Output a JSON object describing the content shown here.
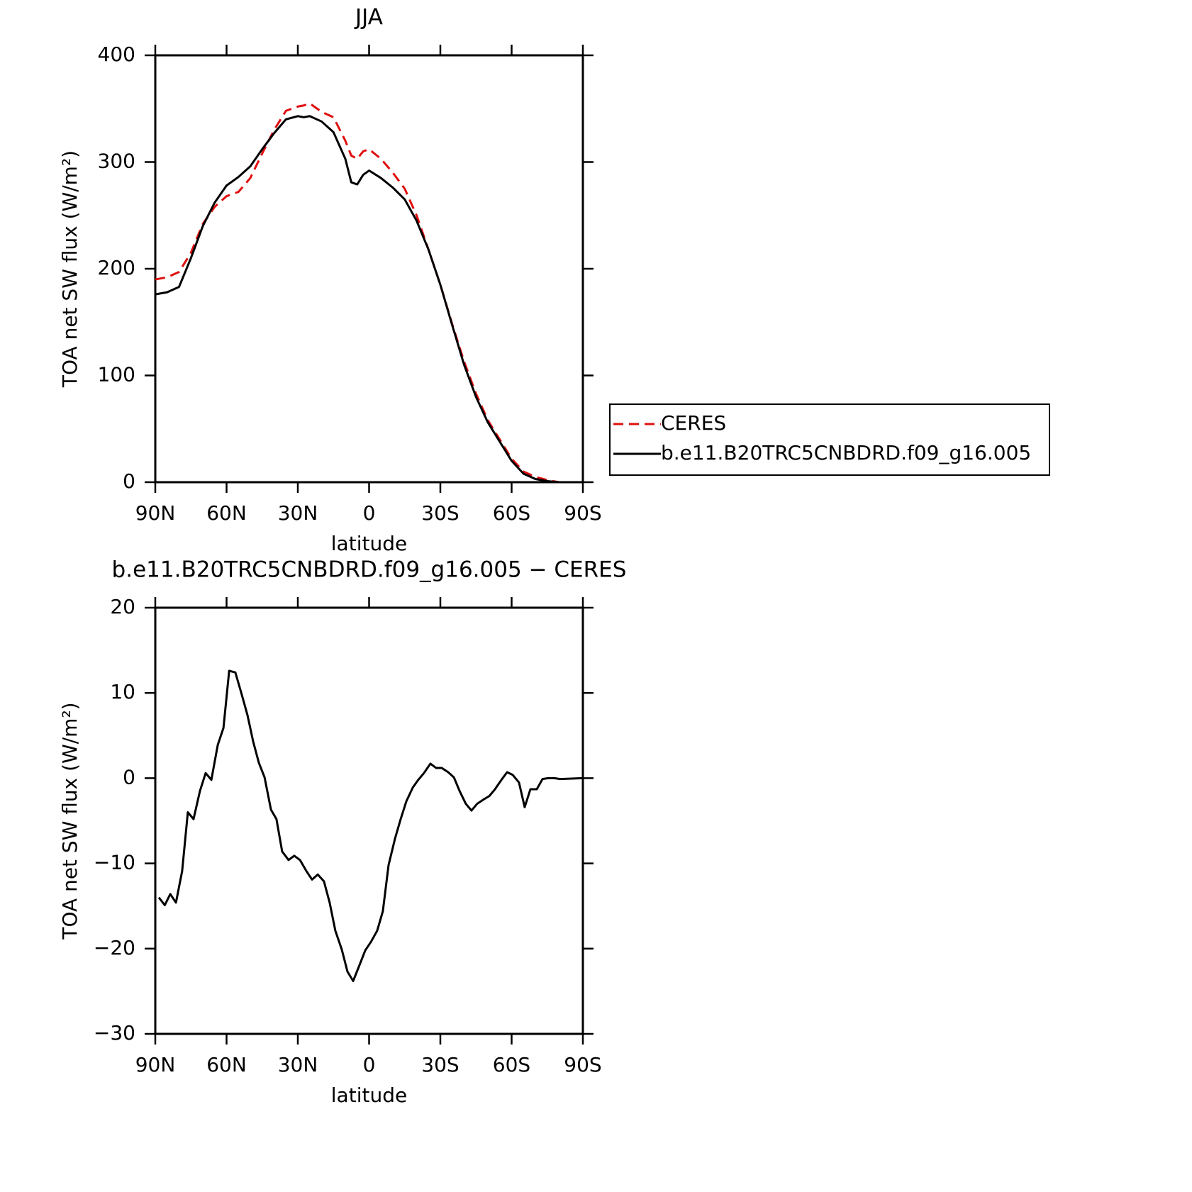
{
  "chart_data": [
    {
      "type": "line",
      "title": "JJA",
      "xlabel": "latitude",
      "ylabel": "TOA net SW flux (W/m²)",
      "x": [
        90,
        85,
        80,
        75,
        70,
        65,
        60,
        55,
        50,
        45,
        40,
        35,
        30,
        27.5,
        25,
        20,
        15,
        10,
        7.5,
        5,
        2.5,
        0,
        -5,
        -10,
        -15,
        -20,
        -25,
        -30,
        -35,
        -40,
        -45,
        -50,
        -55,
        -60,
        -65,
        -70,
        -75,
        -80,
        -85,
        -90
      ],
      "series": [
        {
          "name": "CERES",
          "color": "#e01010",
          "linestyle": "dashed",
          "values": [
            190,
            192,
            197,
            215,
            242,
            258,
            268,
            272,
            285,
            308,
            330,
            348,
            352,
            353,
            355,
            347,
            342,
            320,
            306,
            303,
            310,
            312,
            303,
            290,
            275,
            250,
            218,
            185,
            148,
            113,
            83,
            58,
            40,
            22,
            10,
            5,
            2,
            0,
            0,
            0
          ]
        },
        {
          "name": "b.e11.B20TRC5CNBDRD.f09_g16.005",
          "color": "#000000",
          "linestyle": "solid",
          "values": [
            176,
            178,
            183,
            210,
            240,
            262,
            278,
            286,
            296,
            312,
            327,
            340,
            343,
            342,
            343,
            338,
            328,
            303,
            281,
            279,
            288,
            292,
            285,
            276,
            265,
            245,
            218,
            185,
            147,
            110,
            80,
            56,
            38,
            20,
            8,
            3,
            1,
            0,
            0,
            0
          ]
        }
      ],
      "xlim": [
        90,
        -90
      ],
      "xticks": [
        {
          "value": 90,
          "label": "90N"
        },
        {
          "value": 60,
          "label": "60N"
        },
        {
          "value": 30,
          "label": "30N"
        },
        0,
        {
          "value": -30,
          "label": "30S"
        },
        {
          "value": -60,
          "label": "60S"
        },
        {
          "value": -90,
          "label": "90S"
        }
      ],
      "ylim": [
        0,
        400
      ],
      "yticks": [
        0,
        100,
        200,
        300,
        400
      ],
      "legend": "right"
    },
    {
      "type": "line",
      "title": "b.e11.B20TRC5CNBDRD.f09_g16.005 − CERES",
      "xlabel": "latitude",
      "ylabel": "TOA net SW flux (W/m²)",
      "x": [
        88.5,
        86,
        83.7,
        81.3,
        78.7,
        76.3,
        73.9,
        71.2,
        68.8,
        66.4,
        63.7,
        61.3,
        58.9,
        56.3,
        53.9,
        51.2,
        48.8,
        46.4,
        44,
        41.3,
        39,
        36.6,
        33.9,
        31.5,
        29.1,
        26.4,
        24,
        21.6,
        19,
        16.6,
        14.2,
        11.5,
        9.1,
        6.7,
        4,
        1.6,
        -0.8,
        -3.4,
        -5.8,
        -8.2,
        -10.9,
        -13.3,
        -15.7,
        -18.4,
        -20.7,
        -23.1,
        -25.8,
        -28.2,
        -30.6,
        -33.3,
        -35.7,
        -38.1,
        -40.7,
        -43.1,
        -45.5,
        -48.2,
        -50.6,
        -53,
        -55.7,
        -58.1,
        -60.4,
        -63.1,
        -65.5,
        -67.9,
        -70.6,
        -73,
        -75.4,
        -78,
        -80.4,
        -90
      ],
      "series": [
        {
          "name": "b.e11.B20TRC5CNBDRD.f09_g16.005 − CERES",
          "color": "#000000",
          "linestyle": "solid",
          "values": [
            -14.0,
            -14.9,
            -13.6,
            -14.6,
            -10.9,
            -4.0,
            -4.8,
            -1.5,
            0.6,
            -0.2,
            3.9,
            5.9,
            12.6,
            12.4,
            10.1,
            7.4,
            4.3,
            1.8,
            0.1,
            -3.7,
            -4.8,
            -8.6,
            -9.6,
            -9.1,
            -9.6,
            -10.9,
            -11.9,
            -11.3,
            -12.1,
            -14.6,
            -17.9,
            -20.1,
            -22.7,
            -23.8,
            -21.9,
            -20.2,
            -19.2,
            -17.9,
            -15.6,
            -10.2,
            -7.1,
            -4.8,
            -2.7,
            -1.1,
            -0.2,
            0.6,
            1.7,
            1.2,
            1.2,
            0.7,
            0.1,
            -1.5,
            -3.0,
            -3.8,
            -3.0,
            -2.5,
            -2.1,
            -1.3,
            -0.2,
            0.7,
            0.4,
            -0.5,
            -3.4,
            -1.3,
            -1.3,
            -0.1,
            0,
            0,
            -0.1,
            0
          ]
        }
      ],
      "xlim": [
        90,
        -90
      ],
      "xticks": [
        {
          "value": 90,
          "label": "90N"
        },
        {
          "value": 60,
          "label": "60N"
        },
        {
          "value": 30,
          "label": "30N"
        },
        0,
        {
          "value": -30,
          "label": "30S"
        },
        {
          "value": -60,
          "label": "60S"
        },
        {
          "value": -90,
          "label": "90S"
        }
      ],
      "ylim": [
        -30,
        20
      ],
      "yticks": [
        {
          "value": -30,
          "label": "−30"
        },
        {
          "value": -20,
          "label": "−20"
        },
        {
          "value": -10,
          "label": "−10"
        },
        0,
        10,
        20
      ]
    }
  ]
}
